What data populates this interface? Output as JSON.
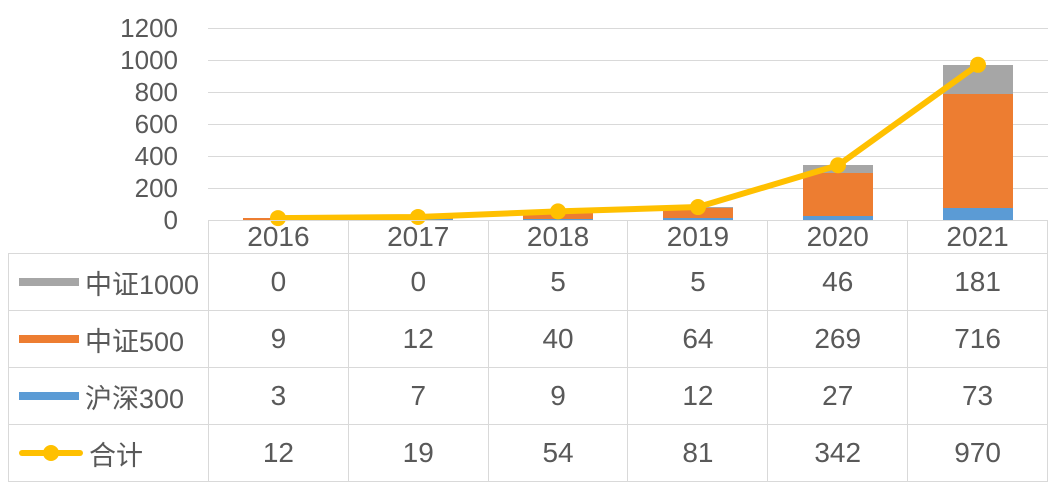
{
  "chart_data": {
    "type": "bar",
    "subtype": "stacked-column-with-line",
    "title": "",
    "xlabel": "",
    "ylabel": "",
    "categories": [
      "2016",
      "2017",
      "2018",
      "2019",
      "2020",
      "2021"
    ],
    "series": [
      {
        "name": "中证1000",
        "type": "bar",
        "color": "#a6a6a6",
        "values": [
          0,
          0,
          5,
          5,
          46,
          181
        ]
      },
      {
        "name": "中证500",
        "type": "bar",
        "color": "#ed7d31",
        "values": [
          9,
          12,
          40,
          64,
          269,
          716
        ]
      },
      {
        "name": "沪深300",
        "type": "bar",
        "color": "#5b9bd5",
        "values": [
          3,
          7,
          9,
          12,
          27,
          73
        ]
      },
      {
        "name": "合计",
        "type": "line",
        "color": "#ffc000",
        "values": [
          12,
          19,
          54,
          81,
          342,
          970
        ]
      }
    ],
    "stack_order_bottom_to_top": [
      "沪深300",
      "中证500",
      "中证1000"
    ],
    "yticks": [
      "1200",
      "1000",
      "800",
      "600",
      "400",
      "200",
      "0"
    ],
    "ylim": [
      0,
      1200
    ],
    "grid": "horizontal",
    "legend_position": "data-table-left-column",
    "colors": {
      "text": "#595959",
      "gridline": "#d9d9d9",
      "table_border": "#d9d9d9",
      "background": "#ffffff"
    }
  }
}
